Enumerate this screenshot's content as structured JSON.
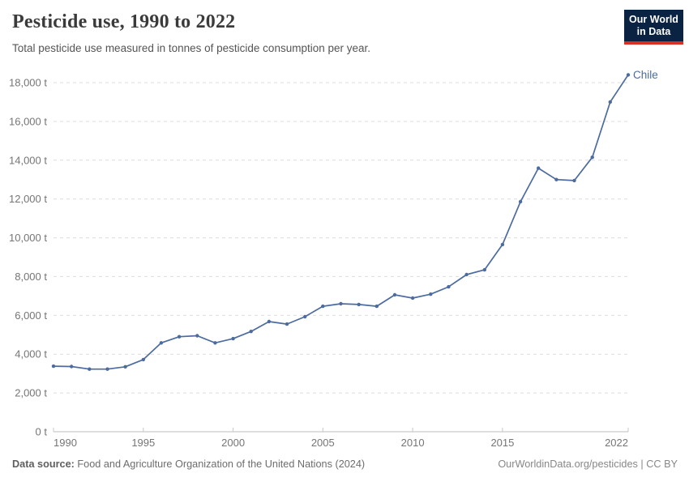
{
  "header": {
    "title": "Pesticide use, 1990 to 2022",
    "subtitle": "Total pesticide use measured in tonnes of pesticide consumption per year."
  },
  "logo": {
    "line1": "Our World",
    "line2": "in Data",
    "bg_color": "#0a2342",
    "accent_color": "#d93025"
  },
  "chart_data": {
    "type": "line",
    "title": "Pesticide use, 1990 to 2022",
    "xlabel": "",
    "ylabel": "",
    "xlim": [
      1990,
      2022
    ],
    "ylim": [
      0,
      18000
    ],
    "grid": "horizontal-dashed",
    "legend_position": "end-of-line",
    "x": [
      1990,
      1991,
      1992,
      1993,
      1994,
      1995,
      1996,
      1997,
      1998,
      1999,
      2000,
      2001,
      2002,
      2003,
      2004,
      2005,
      2006,
      2007,
      2008,
      2009,
      2010,
      2011,
      2012,
      2013,
      2014,
      2015,
      2016,
      2017,
      2018,
      2019,
      2020,
      2021,
      2022
    ],
    "series": [
      {
        "name": "Chile",
        "color": "#4c6b9e",
        "values": [
          3380,
          3360,
          3230,
          3230,
          3350,
          3720,
          4580,
          4900,
          4950,
          4580,
          4800,
          5170,
          5680,
          5550,
          5930,
          6470,
          6600,
          6560,
          6470,
          7060,
          6890,
          7090,
          7470,
          8100,
          8350,
          9650,
          11860,
          13590,
          13000,
          12950,
          14150,
          17000,
          18400
        ]
      }
    ],
    "yticks": [
      {
        "value": 0,
        "label": "0 t"
      },
      {
        "value": 2000,
        "label": "2,000 t"
      },
      {
        "value": 4000,
        "label": "4,000 t"
      },
      {
        "value": 6000,
        "label": "6,000 t"
      },
      {
        "value": 8000,
        "label": "8,000 t"
      },
      {
        "value": 10000,
        "label": "10,000 t"
      },
      {
        "value": 12000,
        "label": "12,000 t"
      },
      {
        "value": 14000,
        "label": "14,000 t"
      },
      {
        "value": 16000,
        "label": "16,000 t"
      },
      {
        "value": 18000,
        "label": "18,000 t"
      }
    ],
    "xticks": [
      {
        "value": 1990,
        "label": "1990"
      },
      {
        "value": 1995,
        "label": "1995"
      },
      {
        "value": 2000,
        "label": "2000"
      },
      {
        "value": 2005,
        "label": "2005"
      },
      {
        "value": 2010,
        "label": "2010"
      },
      {
        "value": 2015,
        "label": "2015"
      },
      {
        "value": 2022,
        "label": "2022"
      }
    ],
    "colors": {
      "gridline": "#dcdcdc",
      "axis_line": "#bdbdbd",
      "tick_mark": "#c8c8c8"
    }
  },
  "footer": {
    "source_label": "Data source:",
    "source_text": "Food and Agriculture Organization of the United Nations (2024)",
    "link_text": "OurWorldinData.org/pesticides",
    "divider": " | ",
    "license_text": "CC BY"
  }
}
